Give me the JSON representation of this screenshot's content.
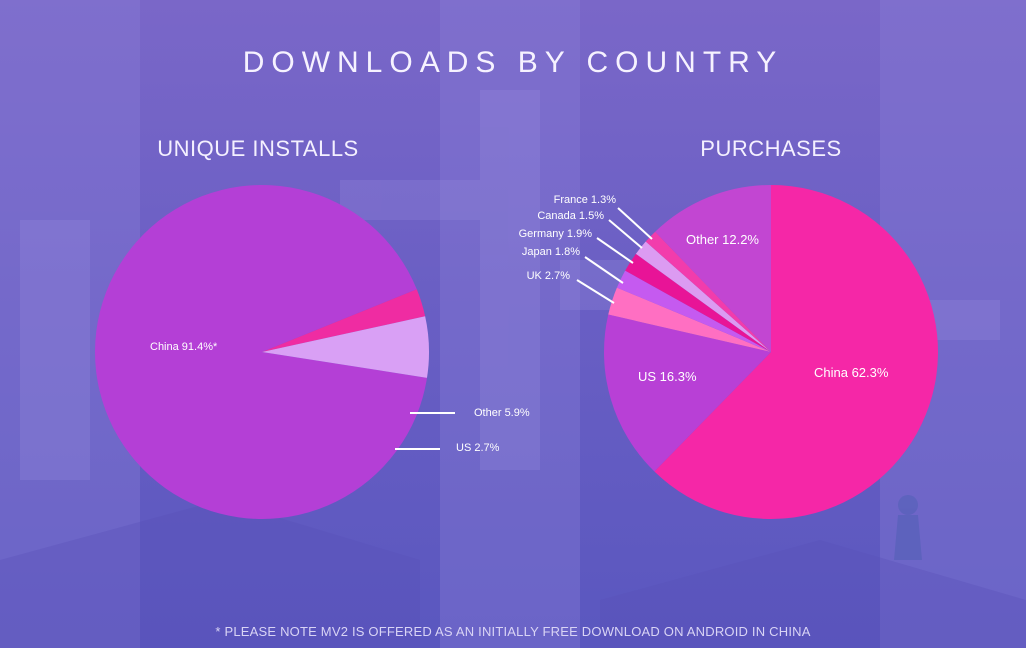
{
  "title": "DOWNLOADS BY COUNTRY",
  "footnote": "* PLEASE NOTE MV2 IS OFFERED AS AN INITIALLY FREE DOWNLOAD ON ANDROID IN CHINA",
  "chart_data": [
    {
      "type": "pie",
      "title": "UNIQUE INSTALLS",
      "slices": [
        {
          "label": "China 91.4%*",
          "value": 91.4,
          "color": "#b43fd6"
        },
        {
          "label": "US 2.7%",
          "value": 2.7,
          "color": "#ef2ca2"
        },
        {
          "label": "Other 5.9%",
          "value": 5.9,
          "color": "#d9a0f5"
        }
      ]
    },
    {
      "type": "pie",
      "title": "PURCHASES",
      "slices": [
        {
          "label": "China 62.3%",
          "value": 62.3,
          "color": "#f527a7"
        },
        {
          "label": "US 16.3%",
          "value": 16.3,
          "color": "#b840d6"
        },
        {
          "label": "UK 2.7%",
          "value": 2.7,
          "color": "#ff6fc2"
        },
        {
          "label": "Japan 1.8%",
          "value": 1.8,
          "color": "#c55af0"
        },
        {
          "label": "Germany 1.9%",
          "value": 1.9,
          "color": "#e81497"
        },
        {
          "label": "Canada 1.5%",
          "value": 1.5,
          "color": "#dc9bf2"
        },
        {
          "label": "France 1.3%",
          "value": 1.3,
          "color": "#f23cac"
        },
        {
          "label": "Other 12.2%",
          "value": 12.2,
          "color": "#c246d2"
        }
      ]
    }
  ]
}
